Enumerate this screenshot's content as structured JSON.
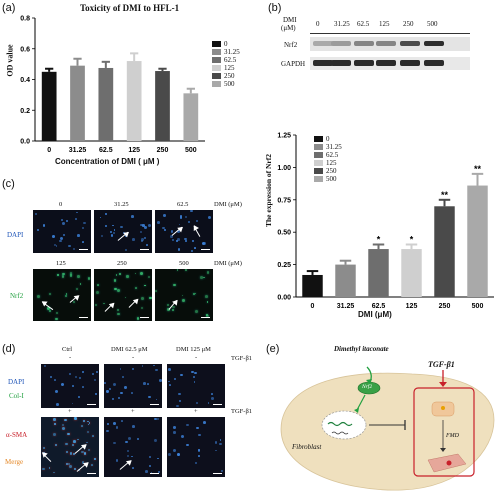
{
  "panel_labels": {
    "a": "(a)",
    "b": "(b)",
    "c": "(c)",
    "d": "(d)",
    "e": "(e)"
  },
  "colors": {
    "s0": "#111111",
    "s31": "#8c8c8c",
    "s62": "#6e6e6e",
    "s125": "#cfcfcf",
    "s250": "#4a4a4a",
    "s500": "#a9a9a9",
    "bg_cell": "#f0e3c2",
    "green": "#22a040",
    "red": "#c8202a",
    "blue": "#1f55b8",
    "orange": "#e58a2a"
  },
  "chart_data": [
    {
      "type": "bar",
      "title": "Toxicity of DMI to HFL-1",
      "xlabel": "Concentration of DMI ( μM )",
      "ylabel": "OD value",
      "categories": [
        "0",
        "31.25",
        "62.5",
        "125",
        "250",
        "500"
      ],
      "values": [
        0.45,
        0.49,
        0.475,
        0.52,
        0.455,
        0.31
      ],
      "errors": [
        0.02,
        0.045,
        0.04,
        0.05,
        0.015,
        0.03
      ],
      "ylim": [
        0,
        0.8
      ],
      "yticks": [
        "0.0",
        "0.2",
        "0.4",
        "0.6",
        "0.8"
      ],
      "legend_placement": "right",
      "legend": [
        "0",
        "31.25",
        "62.5",
        "125",
        "250",
        "500"
      ]
    },
    {
      "type": "bar",
      "title": "",
      "xlabel": "DMI (μM)",
      "ylabel": "The expression of Nrf2",
      "categories": [
        "0",
        "31.25",
        "62.5",
        "125",
        "250",
        "500"
      ],
      "values": [
        0.17,
        0.25,
        0.37,
        0.37,
        0.7,
        0.86
      ],
      "errors": [
        0.03,
        0.03,
        0.035,
        0.035,
        0.05,
        0.09
      ],
      "significance": [
        "",
        "",
        "*",
        "*",
        "**",
        "**"
      ],
      "ylim": [
        0,
        1.25
      ],
      "yticks": [
        "0.00",
        "0.25",
        "0.50",
        "0.75",
        "1.00",
        "1.25"
      ],
      "legend_placement": "top-left",
      "legend": [
        "0",
        "31.25",
        "62.5",
        "125",
        "250",
        "500"
      ]
    }
  ],
  "blot": {
    "dmi_label": "DMI",
    "unit": "(μM)",
    "concs": [
      "0",
      "31.25",
      "62.5",
      "125",
      "250",
      "500"
    ],
    "rows": [
      "Nrf2",
      "GAPDH"
    ]
  },
  "panel_c": {
    "top_concs": [
      "0",
      "31.25",
      "62.5"
    ],
    "bottom_concs": [
      "125",
      "250",
      "500"
    ],
    "unit": "DMI (μM)",
    "row_labels": [
      "DAPI",
      "Nrf2"
    ]
  },
  "panel_d": {
    "cols": [
      "Ctrl",
      "DMI 62.5 μM",
      "DMI 125 μM"
    ],
    "tgf": "TGF-β1",
    "signs_top": [
      "-",
      "-",
      "-"
    ],
    "signs_bottom": [
      "+",
      "+",
      "+"
    ],
    "row_labels": [
      "DAPI",
      "Col-I",
      "α-SMA",
      "Merge"
    ]
  },
  "panel_e": {
    "dmi_label": "Dimethyl itaconate",
    "nrf2": "Nrf2",
    "tgf": "TGF-β1",
    "fibroblast": "Fibroblast",
    "fmd": "FMD"
  }
}
